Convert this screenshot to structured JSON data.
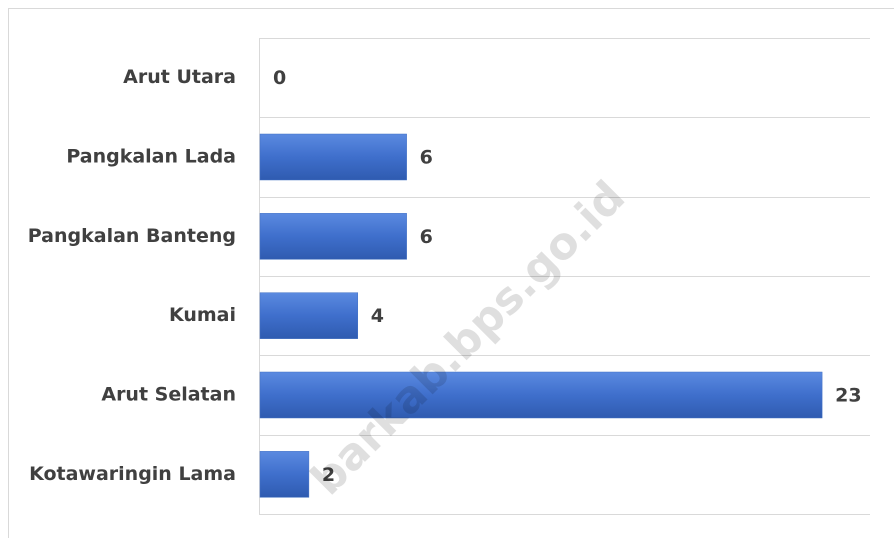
{
  "chart_data": {
    "type": "bar",
    "orientation": "horizontal",
    "categories": [
      "Arut Utara",
      "Pangkalan Lada",
      "Pangkalan Banteng",
      "Kumai",
      "Arut Selatan",
      "Kotawaringin Lama"
    ],
    "values": [
      0,
      6,
      6,
      4,
      23,
      2
    ],
    "color": "#4472c4",
    "xlim": [
      0,
      25
    ],
    "watermark": "barkab.bps.go.id"
  }
}
